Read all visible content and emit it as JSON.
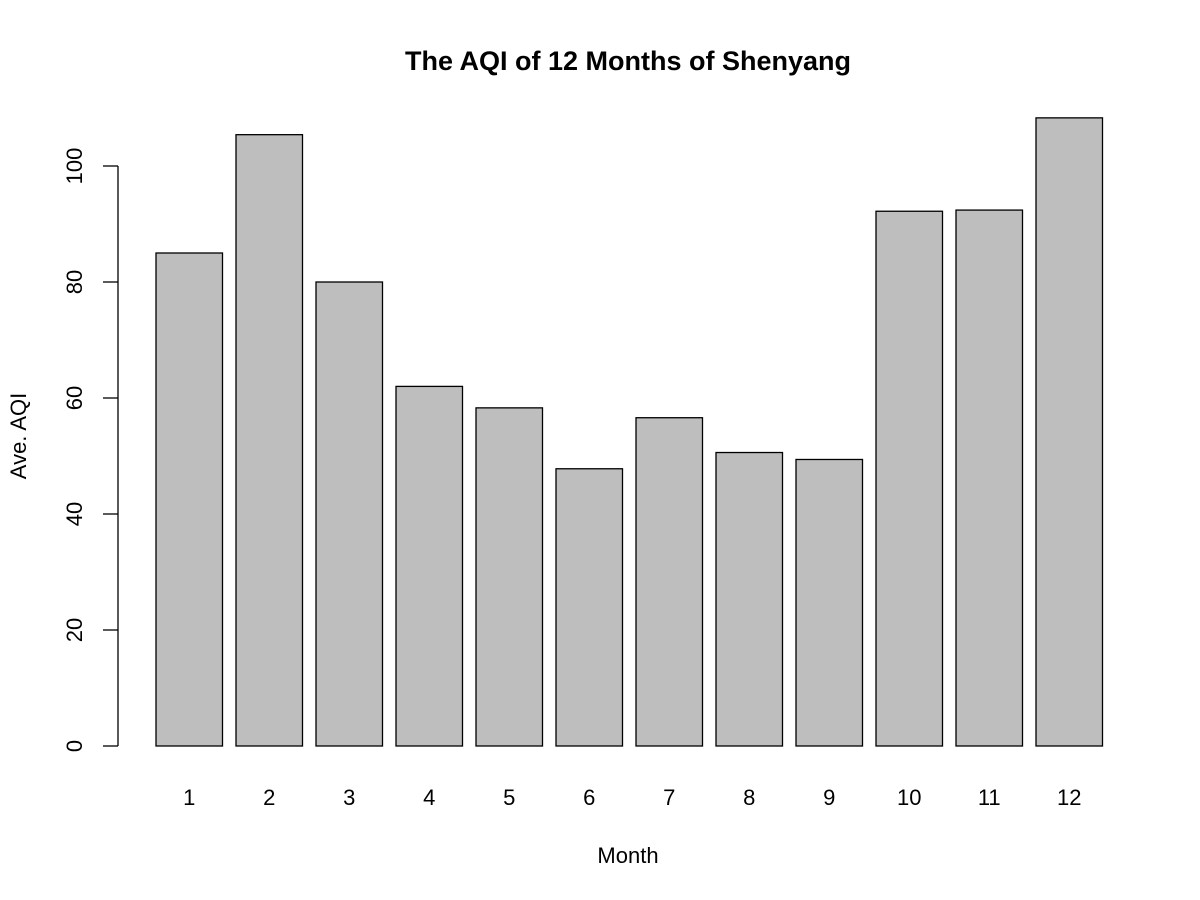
{
  "chart_data": {
    "type": "bar",
    "title": "The AQI of 12 Months of Shenyang",
    "xlabel": "Month",
    "ylabel": "Ave. AQI",
    "categories": [
      "1",
      "2",
      "3",
      "4",
      "5",
      "6",
      "7",
      "8",
      "9",
      "10",
      "11",
      "12"
    ],
    "values": [
      85,
      105.4,
      80,
      62,
      58.3,
      47.8,
      56.6,
      50.6,
      49.4,
      92.2,
      92.4,
      108.3
    ],
    "yticks": [
      "0",
      "20",
      "40",
      "60",
      "80",
      "100"
    ],
    "ylim": [
      0,
      110
    ],
    "bar_color": "#bebebe",
    "grid": false,
    "legend": "none"
  }
}
